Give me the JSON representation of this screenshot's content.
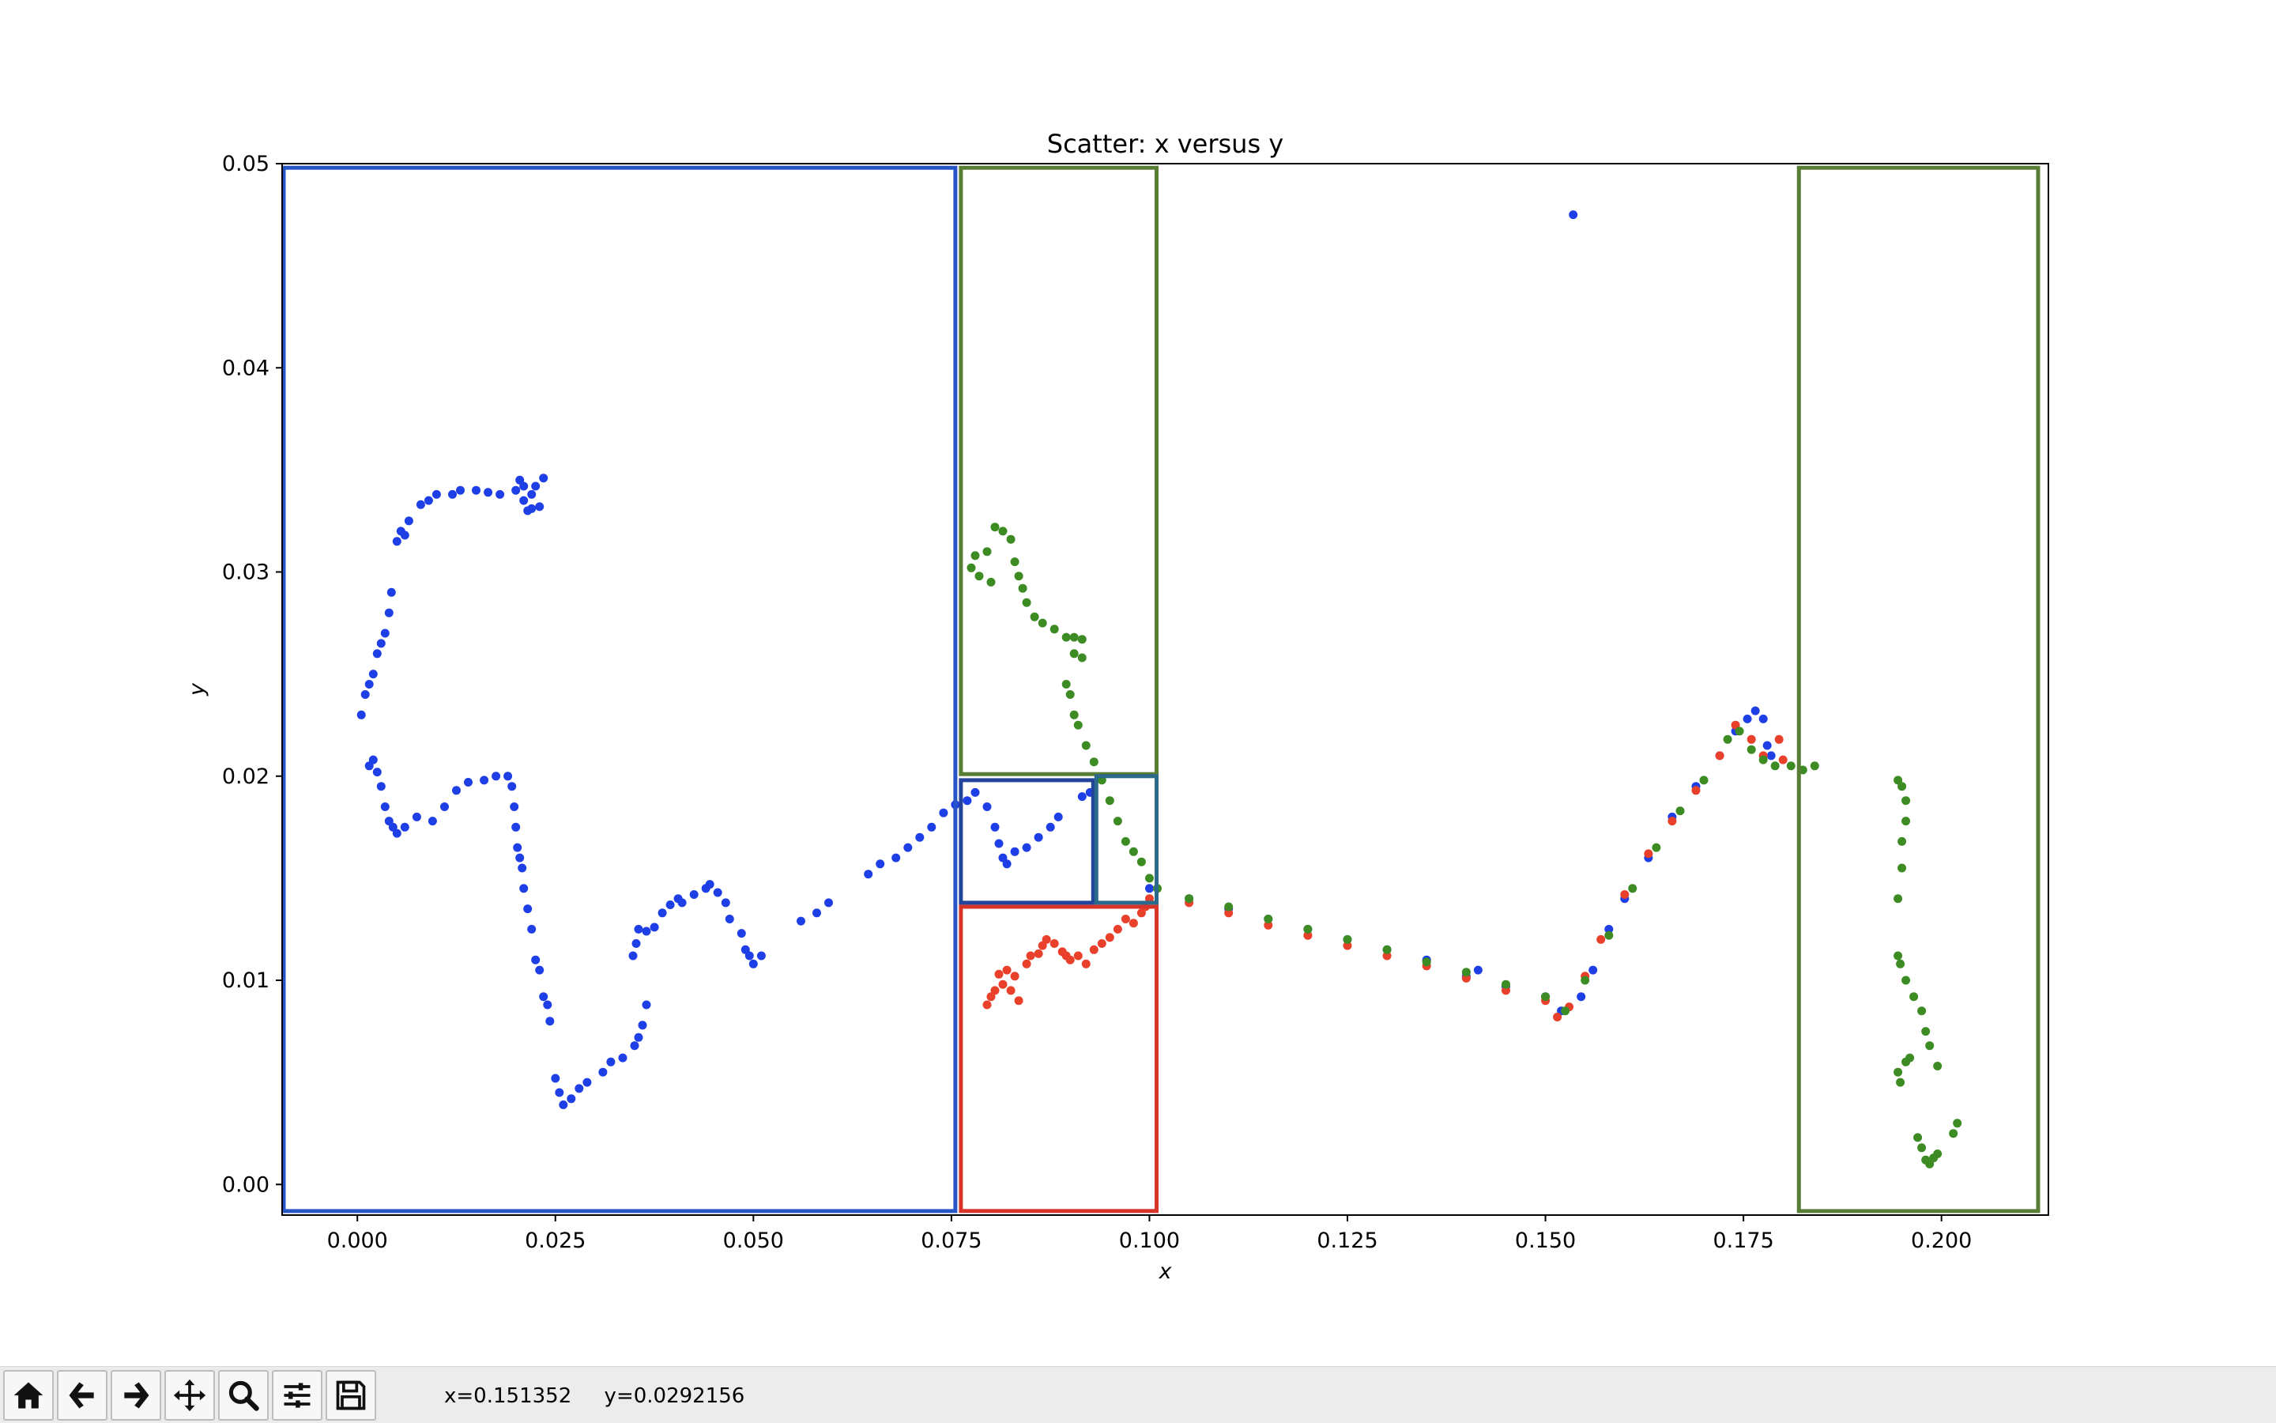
{
  "chart_data": {
    "type": "scatter",
    "title": "Scatter: x versus y",
    "xlabel": "x",
    "ylabel": "y",
    "xlim": [
      -0.0095,
      0.2135
    ],
    "ylim": [
      -0.0015,
      0.05
    ],
    "xticks": [
      "0.000",
      "0.025",
      "0.050",
      "0.075",
      "0.100",
      "0.125",
      "0.150",
      "0.175",
      "0.200"
    ],
    "yticks": [
      "0.00",
      "0.01",
      "0.02",
      "0.03",
      "0.04",
      "0.05"
    ],
    "grid": false,
    "series": [
      {
        "color": "#1f3fe6",
        "points": [
          [
            0.0005,
            0.023
          ],
          [
            0.001,
            0.024
          ],
          [
            0.0015,
            0.0245
          ],
          [
            0.002,
            0.025
          ],
          [
            0.0025,
            0.026
          ],
          [
            0.003,
            0.0265
          ],
          [
            0.0035,
            0.027
          ],
          [
            0.004,
            0.028
          ],
          [
            0.0043,
            0.029
          ],
          [
            0.005,
            0.0315
          ],
          [
            0.0055,
            0.032
          ],
          [
            0.006,
            0.0318
          ],
          [
            0.0065,
            0.0325
          ],
          [
            0.008,
            0.0333
          ],
          [
            0.009,
            0.0335
          ],
          [
            0.01,
            0.0338
          ],
          [
            0.012,
            0.0338
          ],
          [
            0.013,
            0.034
          ],
          [
            0.015,
            0.034
          ],
          [
            0.0165,
            0.0339
          ],
          [
            0.018,
            0.0338
          ],
          [
            0.02,
            0.034
          ],
          [
            0.0205,
            0.0345
          ],
          [
            0.021,
            0.0335
          ],
          [
            0.0215,
            0.033
          ],
          [
            0.022,
            0.0338
          ],
          [
            0.0225,
            0.0342
          ],
          [
            0.023,
            0.0332
          ],
          [
            0.0235,
            0.0346
          ],
          [
            0.021,
            0.0342
          ],
          [
            0.022,
            0.0331
          ],
          [
            0.0015,
            0.0205
          ],
          [
            0.002,
            0.0208
          ],
          [
            0.0025,
            0.0202
          ],
          [
            0.003,
            0.0195
          ],
          [
            0.0035,
            0.0185
          ],
          [
            0.004,
            0.0178
          ],
          [
            0.0045,
            0.0175
          ],
          [
            0.005,
            0.0172
          ],
          [
            0.006,
            0.0175
          ],
          [
            0.0075,
            0.018
          ],
          [
            0.0095,
            0.0178
          ],
          [
            0.011,
            0.0185
          ],
          [
            0.0125,
            0.0193
          ],
          [
            0.014,
            0.0197
          ],
          [
            0.016,
            0.0198
          ],
          [
            0.0175,
            0.02
          ],
          [
            0.019,
            0.02
          ],
          [
            0.0195,
            0.0195
          ],
          [
            0.0198,
            0.0185
          ],
          [
            0.02,
            0.0175
          ],
          [
            0.0202,
            0.0165
          ],
          [
            0.0205,
            0.016
          ],
          [
            0.0208,
            0.0155
          ],
          [
            0.021,
            0.0145
          ],
          [
            0.0215,
            0.0135
          ],
          [
            0.022,
            0.0125
          ],
          [
            0.0225,
            0.011
          ],
          [
            0.023,
            0.0105
          ],
          [
            0.0235,
            0.0092
          ],
          [
            0.024,
            0.0088
          ],
          [
            0.0243,
            0.008
          ],
          [
            0.025,
            0.0052
          ],
          [
            0.0255,
            0.0045
          ],
          [
            0.026,
            0.0039
          ],
          [
            0.027,
            0.0042
          ],
          [
            0.028,
            0.0047
          ],
          [
            0.029,
            0.005
          ],
          [
            0.031,
            0.0055
          ],
          [
            0.032,
            0.006
          ],
          [
            0.0335,
            0.0062
          ],
          [
            0.035,
            0.0068
          ],
          [
            0.0355,
            0.0072
          ],
          [
            0.036,
            0.0078
          ],
          [
            0.0365,
            0.0088
          ],
          [
            0.0348,
            0.0112
          ],
          [
            0.0352,
            0.0118
          ],
          [
            0.0355,
            0.0125
          ],
          [
            0.0365,
            0.0124
          ],
          [
            0.0375,
            0.0126
          ],
          [
            0.0385,
            0.0133
          ],
          [
            0.0395,
            0.0137
          ],
          [
            0.0405,
            0.014
          ],
          [
            0.041,
            0.0138
          ],
          [
            0.0425,
            0.0142
          ],
          [
            0.044,
            0.0145
          ],
          [
            0.0445,
            0.0147
          ],
          [
            0.0455,
            0.0143
          ],
          [
            0.0465,
            0.0138
          ],
          [
            0.047,
            0.013
          ],
          [
            0.0485,
            0.0123
          ],
          [
            0.049,
            0.0115
          ],
          [
            0.0495,
            0.0112
          ],
          [
            0.05,
            0.0108
          ],
          [
            0.051,
            0.0112
          ],
          [
            0.056,
            0.0129
          ],
          [
            0.058,
            0.0133
          ],
          [
            0.0595,
            0.0138
          ],
          [
            0.0645,
            0.0152
          ],
          [
            0.066,
            0.0157
          ],
          [
            0.068,
            0.016
          ],
          [
            0.0695,
            0.0165
          ],
          [
            0.071,
            0.017
          ],
          [
            0.0725,
            0.0175
          ],
          [
            0.074,
            0.0182
          ],
          [
            0.0755,
            0.0186
          ],
          [
            0.077,
            0.0188
          ],
          [
            0.078,
            0.0192
          ],
          [
            0.0795,
            0.0185
          ],
          [
            0.0805,
            0.0175
          ],
          [
            0.081,
            0.0167
          ],
          [
            0.0815,
            0.016
          ],
          [
            0.082,
            0.0157
          ],
          [
            0.083,
            0.0163
          ],
          [
            0.0845,
            0.0165
          ],
          [
            0.086,
            0.017
          ],
          [
            0.0875,
            0.0175
          ],
          [
            0.0885,
            0.018
          ],
          [
            0.0915,
            0.019
          ],
          [
            0.0925,
            0.0192
          ],
          [
            0.1,
            0.0145
          ],
          [
            0.105,
            0.014
          ],
          [
            0.11,
            0.0135
          ],
          [
            0.115,
            0.013
          ],
          [
            0.12,
            0.0125
          ],
          [
            0.125,
            0.012
          ],
          [
            0.13,
            0.0115
          ],
          [
            0.135,
            0.011
          ],
          [
            0.14,
            0.0102
          ],
          [
            0.145,
            0.0097
          ],
          [
            0.15,
            0.0092
          ],
          [
            0.152,
            0.0085
          ],
          [
            0.1545,
            0.0092
          ],
          [
            0.156,
            0.0105
          ],
          [
            0.158,
            0.0125
          ],
          [
            0.16,
            0.014
          ],
          [
            0.163,
            0.016
          ],
          [
            0.166,
            0.018
          ],
          [
            0.169,
            0.0195
          ],
          [
            0.172,
            0.021
          ],
          [
            0.174,
            0.0222
          ],
          [
            0.1755,
            0.0228
          ],
          [
            0.1765,
            0.0232
          ],
          [
            0.1775,
            0.0228
          ],
          [
            0.178,
            0.0215
          ],
          [
            0.1785,
            0.021
          ],
          [
            0.1415,
            0.0105
          ],
          [
            0.1535,
            0.0475
          ]
        ]
      },
      {
        "color": "#e8402a",
        "points": [
          [
            0.0795,
            0.0088
          ],
          [
            0.08,
            0.0092
          ],
          [
            0.0805,
            0.0095
          ],
          [
            0.081,
            0.0103
          ],
          [
            0.0815,
            0.0098
          ],
          [
            0.082,
            0.0105
          ],
          [
            0.0825,
            0.0095
          ],
          [
            0.083,
            0.0102
          ],
          [
            0.0835,
            0.009
          ],
          [
            0.0845,
            0.0108
          ],
          [
            0.085,
            0.0112
          ],
          [
            0.086,
            0.0113
          ],
          [
            0.0865,
            0.0117
          ],
          [
            0.087,
            0.012
          ],
          [
            0.088,
            0.0118
          ],
          [
            0.089,
            0.0114
          ],
          [
            0.0895,
            0.0112
          ],
          [
            0.09,
            0.011
          ],
          [
            0.091,
            0.0112
          ],
          [
            0.092,
            0.0108
          ],
          [
            0.093,
            0.0115
          ],
          [
            0.094,
            0.0118
          ],
          [
            0.095,
            0.0121
          ],
          [
            0.096,
            0.0125
          ],
          [
            0.097,
            0.013
          ],
          [
            0.098,
            0.0128
          ],
          [
            0.099,
            0.0133
          ],
          [
            0.0995,
            0.0136
          ],
          [
            0.1,
            0.014
          ],
          [
            0.105,
            0.0138
          ],
          [
            0.11,
            0.0133
          ],
          [
            0.115,
            0.0127
          ],
          [
            0.12,
            0.0122
          ],
          [
            0.125,
            0.0117
          ],
          [
            0.13,
            0.0112
          ],
          [
            0.135,
            0.0107
          ],
          [
            0.14,
            0.0101
          ],
          [
            0.145,
            0.0095
          ],
          [
            0.15,
            0.009
          ],
          [
            0.1515,
            0.0082
          ],
          [
            0.153,
            0.0087
          ],
          [
            0.155,
            0.0102
          ],
          [
            0.157,
            0.012
          ],
          [
            0.16,
            0.0142
          ],
          [
            0.163,
            0.0162
          ],
          [
            0.166,
            0.0178
          ],
          [
            0.169,
            0.0193
          ],
          [
            0.172,
            0.021
          ],
          [
            0.174,
            0.0225
          ],
          [
            0.176,
            0.0218
          ],
          [
            0.1775,
            0.021
          ],
          [
            0.1795,
            0.0218
          ],
          [
            0.18,
            0.0208
          ]
        ]
      },
      {
        "color": "#3c8c23",
        "points": [
          [
            0.0775,
            0.0302
          ],
          [
            0.078,
            0.0308
          ],
          [
            0.0785,
            0.0298
          ],
          [
            0.0795,
            0.031
          ],
          [
            0.08,
            0.0295
          ],
          [
            0.0805,
            0.0322
          ],
          [
            0.0815,
            0.032
          ],
          [
            0.0825,
            0.0316
          ],
          [
            0.083,
            0.0305
          ],
          [
            0.0835,
            0.0298
          ],
          [
            0.084,
            0.0292
          ],
          [
            0.0845,
            0.0285
          ],
          [
            0.0855,
            0.0278
          ],
          [
            0.0865,
            0.0275
          ],
          [
            0.088,
            0.0272
          ],
          [
            0.0895,
            0.0268
          ],
          [
            0.0905,
            0.0268
          ],
          [
            0.0915,
            0.0267
          ],
          [
            0.0905,
            0.026
          ],
          [
            0.0915,
            0.0258
          ],
          [
            0.0895,
            0.0245
          ],
          [
            0.09,
            0.024
          ],
          [
            0.0905,
            0.023
          ],
          [
            0.091,
            0.0225
          ],
          [
            0.092,
            0.0215
          ],
          [
            0.093,
            0.0207
          ],
          [
            0.094,
            0.0198
          ],
          [
            0.095,
            0.0188
          ],
          [
            0.096,
            0.0178
          ],
          [
            0.097,
            0.0168
          ],
          [
            0.098,
            0.0163
          ],
          [
            0.099,
            0.0158
          ],
          [
            0.1,
            0.015
          ],
          [
            0.101,
            0.0145
          ],
          [
            0.105,
            0.014
          ],
          [
            0.11,
            0.0136
          ],
          [
            0.115,
            0.013
          ],
          [
            0.12,
            0.0125
          ],
          [
            0.125,
            0.012
          ],
          [
            0.13,
            0.0115
          ],
          [
            0.135,
            0.0109
          ],
          [
            0.14,
            0.0104
          ],
          [
            0.145,
            0.0098
          ],
          [
            0.15,
            0.0092
          ],
          [
            0.1525,
            0.0085
          ],
          [
            0.155,
            0.01
          ],
          [
            0.158,
            0.0122
          ],
          [
            0.161,
            0.0145
          ],
          [
            0.164,
            0.0165
          ],
          [
            0.167,
            0.0183
          ],
          [
            0.17,
            0.0198
          ],
          [
            0.173,
            0.0218
          ],
          [
            0.1745,
            0.0222
          ],
          [
            0.176,
            0.0213
          ],
          [
            0.1775,
            0.0208
          ],
          [
            0.179,
            0.0205
          ],
          [
            0.181,
            0.0205
          ],
          [
            0.1825,
            0.0203
          ],
          [
            0.184,
            0.0205
          ],
          [
            0.1945,
            0.0198
          ],
          [
            0.195,
            0.0195
          ],
          [
            0.1955,
            0.0188
          ],
          [
            0.1955,
            0.0178
          ],
          [
            0.195,
            0.0168
          ],
          [
            0.195,
            0.0155
          ],
          [
            0.1945,
            0.014
          ],
          [
            0.1945,
            0.0112
          ],
          [
            0.1948,
            0.0108
          ],
          [
            0.1955,
            0.01
          ],
          [
            0.1965,
            0.0092
          ],
          [
            0.1975,
            0.0085
          ],
          [
            0.198,
            0.0075
          ],
          [
            0.1985,
            0.0068
          ],
          [
            0.1995,
            0.0058
          ],
          [
            0.1955,
            0.006
          ],
          [
            0.196,
            0.0062
          ],
          [
            0.1945,
            0.0055
          ],
          [
            0.1948,
            0.005
          ],
          [
            0.197,
            0.0023
          ],
          [
            0.1975,
            0.0018
          ],
          [
            0.198,
            0.0012
          ],
          [
            0.1985,
            0.001
          ],
          [
            0.199,
            0.0013
          ],
          [
            0.1995,
            0.0015
          ],
          [
            0.2015,
            0.0025
          ],
          [
            0.202,
            0.003
          ]
        ]
      }
    ],
    "rectangles": [
      {
        "color": "#2755c8",
        "x0": -0.0093,
        "x1": 0.0755,
        "y0": -0.0013,
        "y1": 0.0498
      },
      {
        "color": "#587d35",
        "x0": 0.0762,
        "x1": 0.1009,
        "y0": 0.0201,
        "y1": 0.0498
      },
      {
        "color": "#23449a",
        "x0": 0.0762,
        "x1": 0.0929,
        "y0": 0.0138,
        "y1": 0.0198
      },
      {
        "color": "#2b6a8b",
        "x0": 0.0933,
        "x1": 0.1009,
        "y0": 0.0138,
        "y1": 0.02
      },
      {
        "color": "#d7352a",
        "x0": 0.0762,
        "x1": 0.1009,
        "y0": -0.0013,
        "y1": 0.0136
      },
      {
        "color": "#587d35",
        "x0": 0.182,
        "x1": 0.2122,
        "y0": -0.0013,
        "y1": 0.0498
      }
    ]
  },
  "toolbar": {
    "buttons": [
      "home-icon",
      "back-arrow-icon",
      "forward-arrow-icon",
      "pan-icon",
      "zoom-icon",
      "configure-subplots-icon",
      "save-icon"
    ],
    "coords": "x=0.151352     y=0.0292156"
  }
}
